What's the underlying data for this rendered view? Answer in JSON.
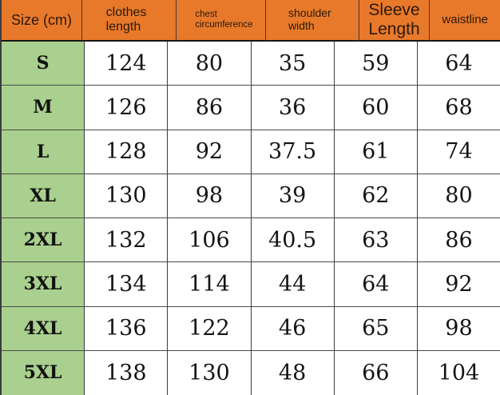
{
  "colors": {
    "header_bg": "#E8792A",
    "size_column_bg": "#A9D08E",
    "grid_line": "#3C3C3C",
    "header_text": "#2B190C",
    "data_text": "#141414",
    "background": "#FFFFFF"
  },
  "chart_data": {
    "type": "table",
    "corner_header": "Size (cm)",
    "column_headers": [
      "clothes\nlength",
      "chest\ncircumference",
      "shoulder\nwidth",
      "Sleeve\nLength",
      "waistline"
    ],
    "rows": [
      {
        "size": "S",
        "values": [
          "124",
          "80",
          "35",
          "59",
          "64"
        ]
      },
      {
        "size": "M",
        "values": [
          "126",
          "86",
          "36",
          "60",
          "68"
        ]
      },
      {
        "size": "L",
        "values": [
          "128",
          "92",
          "37.5",
          "61",
          "74"
        ]
      },
      {
        "size": "XL",
        "values": [
          "130",
          "98",
          "39",
          "62",
          "80"
        ]
      },
      {
        "size": "2XL",
        "values": [
          "132",
          "106",
          "40.5",
          "63",
          "86"
        ]
      },
      {
        "size": "3XL",
        "values": [
          "134",
          "114",
          "44",
          "64",
          "92"
        ]
      },
      {
        "size": "4XL",
        "values": [
          "136",
          "122",
          "46",
          "65",
          "98"
        ]
      },
      {
        "size": "5XL",
        "values": [
          "138",
          "130",
          "48",
          "66",
          "104"
        ]
      }
    ]
  }
}
